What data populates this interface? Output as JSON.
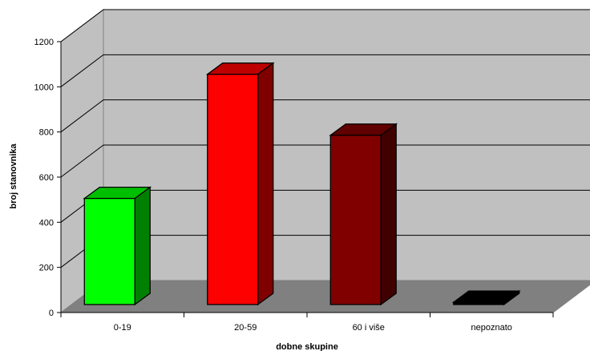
{
  "chart_data": {
    "type": "bar",
    "title": "",
    "xlabel": "dobne skupine",
    "ylabel": "broj stanovnika",
    "categories": [
      "0-19",
      "20-59",
      "60 i više",
      "nepoznato"
    ],
    "values": [
      470,
      1020,
      750,
      10
    ],
    "colors": [
      "#00ff00",
      "#ff0000",
      "#800000",
      "#000000"
    ],
    "ylim": [
      0,
      1200
    ],
    "yticks": [
      "0",
      "200",
      "400",
      "600",
      "800",
      "1000",
      "1200"
    ],
    "grid": true,
    "legend": "none",
    "style": "3d-column",
    "wall_color": "#c0c0c0",
    "floor_color": "#808080"
  }
}
